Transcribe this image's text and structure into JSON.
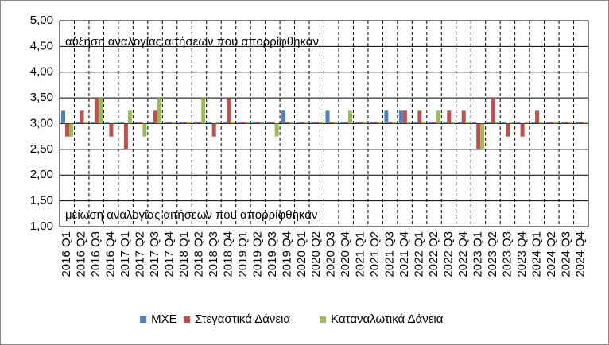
{
  "chart_data": {
    "type": "bar",
    "categories": [
      "2016 Q1",
      "2016 Q2",
      "2016 Q3",
      "2016 Q4",
      "2017 Q1",
      "2017 Q2",
      "2017 Q3",
      "2017 Q4",
      "2018 Q1",
      "2018 Q2",
      "2018 Q3",
      "2018 Q4",
      "2019 Q1",
      "2019 Q2",
      "2019 Q3",
      "2019 Q4",
      "2020 Q1",
      "2020 Q2",
      "2020 Q3",
      "2020 Q4",
      "2021 Q1",
      "2021 Q2",
      "2021 Q3",
      "2021 Q4",
      "2022 Q1",
      "2022 Q2",
      "2022 Q3",
      "2022 Q4",
      "2023 Q1",
      "2023 Q2",
      "2023 Q3",
      "2023 Q4",
      "2024 Q1",
      "2024 Q2",
      "2024 Q3",
      "2024 Q4"
    ],
    "series": [
      {
        "name": "ΜΧΕ",
        "color": "#4f81bd",
        "values": [
          3.25,
          3,
          3,
          3,
          3,
          3,
          3,
          3,
          3,
          3,
          3,
          3,
          3,
          3,
          3,
          3.25,
          3,
          3,
          3.25,
          3,
          3,
          3,
          3.25,
          3.25,
          3,
          3,
          3,
          3,
          3,
          3,
          3,
          3,
          3,
          3,
          3,
          3
        ]
      },
      {
        "name": "Στεγαστικά Δάνεια",
        "color": "#c0504d",
        "values": [
          2.75,
          3.25,
          3.5,
          2.75,
          2.5,
          3,
          3.25,
          3,
          3,
          3,
          2.75,
          3.5,
          3,
          3,
          3,
          3,
          3,
          3,
          3,
          3,
          3,
          3,
          3,
          3.25,
          3.25,
          3,
          3.25,
          3.25,
          2.5,
          3.5,
          2.75,
          2.75,
          3.25,
          3,
          3,
          3
        ]
      },
      {
        "name": "Καταναλωτικά Δάνεια",
        "color": "#9bbb59",
        "values": [
          2.75,
          3,
          3.5,
          3,
          3.25,
          2.75,
          3.5,
          3,
          3,
          3.5,
          3,
          3,
          3,
          3,
          2.75,
          3,
          3,
          3,
          3,
          3.25,
          3,
          3,
          3,
          3,
          3,
          3.25,
          3,
          3,
          2.5,
          3,
          3,
          3,
          3,
          3,
          3,
          3
        ]
      }
    ],
    "bar_origin": 3,
    "ylim": [
      1,
      5
    ],
    "yticks": [
      {
        "value": 1,
        "label": "1,00"
      },
      {
        "value": 1.5,
        "label": "1,50"
      },
      {
        "value": 2,
        "label": "2,00"
      },
      {
        "value": 2.5,
        "label": "2,50"
      },
      {
        "value": 3,
        "label": "3,00"
      },
      {
        "value": 3.5,
        "label": "3,50"
      },
      {
        "value": 4,
        "label": "4,00"
      },
      {
        "value": 4.5,
        "label": "4,50"
      },
      {
        "value": 5,
        "label": "5,00"
      }
    ],
    "annotations": [
      "αύξηση αναλογίας αιτήσεων που απορρίφθηκαν",
      "μείωση αναλογίας αιτήσεων που απορρίφθηκαν"
    ],
    "grid": true,
    "legend": "bottom"
  }
}
